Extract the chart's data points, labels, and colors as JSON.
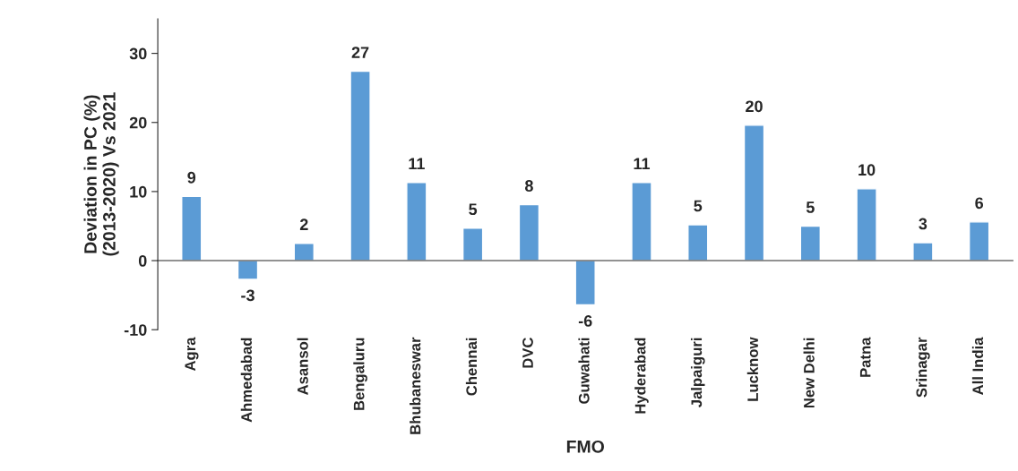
{
  "chart_data": {
    "type": "bar",
    "ylabel": "Deviation in PC (%)\n(2013-2020) Vs 2021",
    "xlabel": "FMO",
    "categories": [
      "Agra",
      "Ahmedabad",
      "Asansol",
      "Bengaluru",
      "Bhubaneswar",
      "Chennai",
      "DVC",
      "Guwahati",
      "Hyderabad",
      "Jalpaiguri",
      "Lucknow",
      "New Delhi",
      "Patna",
      "Srinagar",
      "All India"
    ],
    "values": [
      9.3,
      -2.7,
      2.5,
      27.4,
      11.3,
      4.7,
      8.1,
      -6.4,
      11.3,
      5.2,
      19.6,
      5.0,
      10.4,
      2.6,
      5.6
    ],
    "value_labels": [
      "9",
      "-3",
      "2",
      "27",
      "11",
      "5",
      "8",
      "-6",
      "11",
      "5",
      "20",
      "5",
      "10",
      "3",
      "6"
    ],
    "color": "#5b9bd5",
    "ylim": [
      -10,
      35
    ],
    "yticks": [
      -10,
      0,
      10,
      20,
      30
    ],
    "legend": false
  }
}
